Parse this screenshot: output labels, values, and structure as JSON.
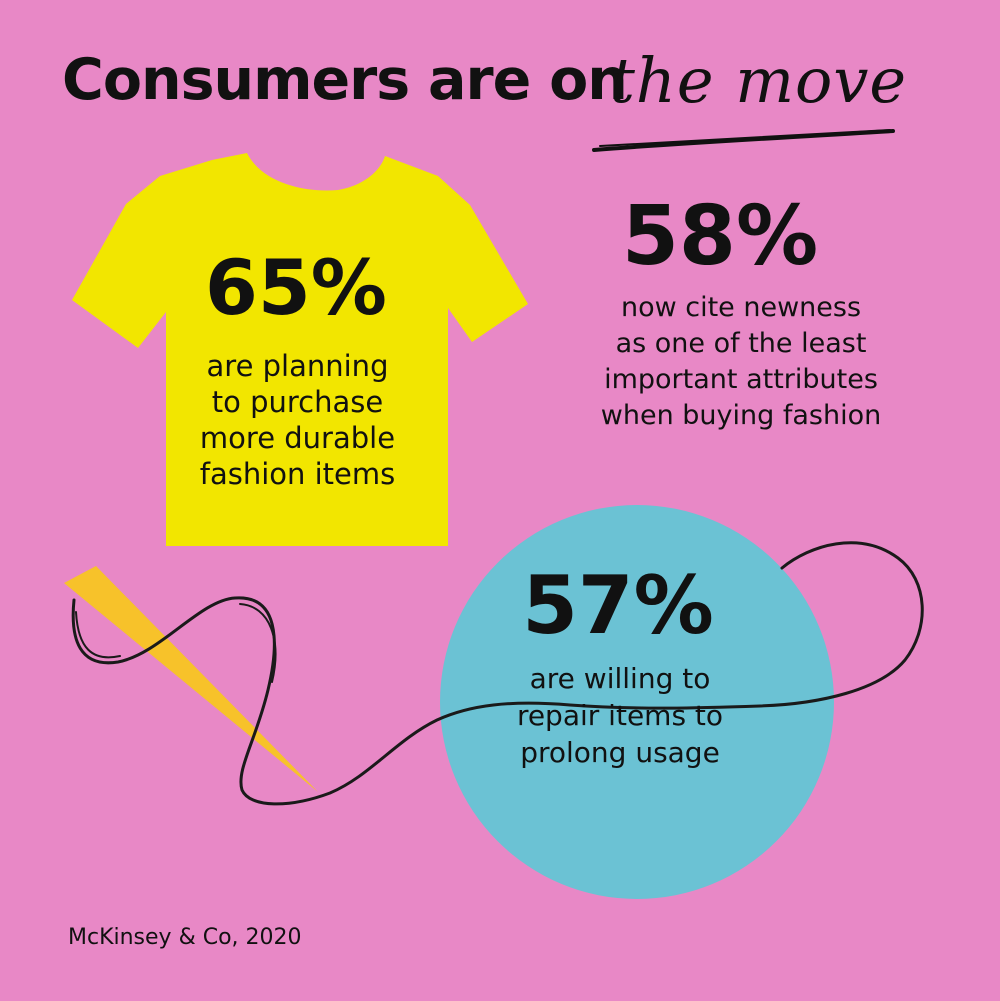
{
  "headline": {
    "bold_text": "Consumers are on",
    "script_text": "the move"
  },
  "stats": [
    {
      "value": "65%",
      "lines": [
        "are planning",
        "to purchase",
        "more durable",
        "fashion items"
      ]
    },
    {
      "value": "58%",
      "lines": [
        "now cite newness",
        "as one of the least",
        "important attributes",
        "when buying fashion"
      ]
    },
    {
      "value": "57%",
      "lines": [
        "are willing to",
        "repair items to",
        "prolong usage"
      ]
    }
  ],
  "source": "McKinsey & Co, 2020",
  "colors": {
    "background": "#e888c6",
    "tshirt": "#f2e600",
    "circle": "#6bc2d4",
    "needle": "#f7c22a",
    "text": "#111111"
  },
  "icons": [
    "tshirt-icon",
    "needle-icon",
    "thread-line",
    "circle-badge",
    "underline-stroke"
  ]
}
